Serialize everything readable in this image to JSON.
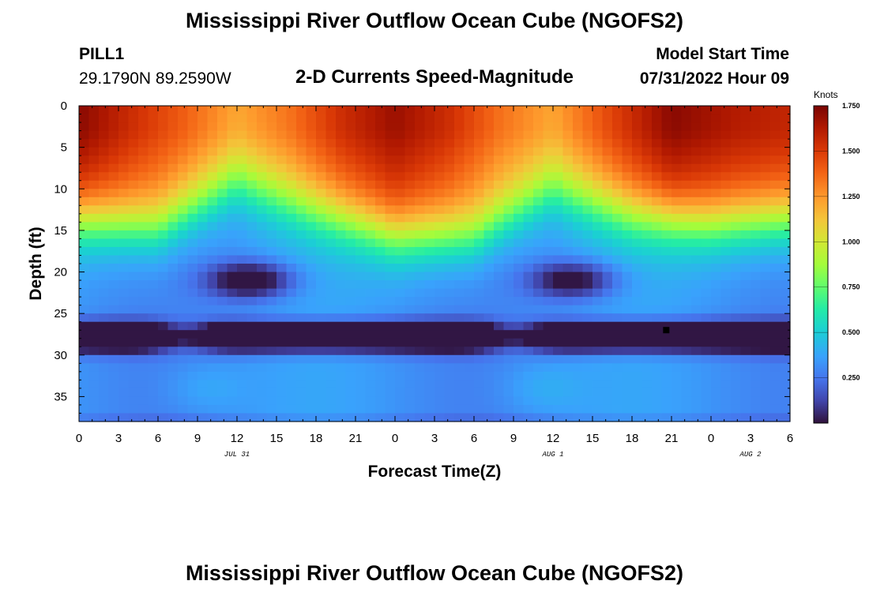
{
  "header": {
    "title": "Mississippi River Outflow Ocean Cube (NGOFS2)",
    "station_name": "PILL1",
    "station_coords": "29.1790N  89.2590W",
    "subtitle": "2-D Currents Speed-Magnitude",
    "model_start_label": "Model Start Time",
    "model_start_value": "07/31/2022 Hour 09"
  },
  "footer": {
    "title": "Mississippi River Outflow Ocean Cube (NGOFS2)"
  },
  "chart_data": {
    "type": "heatmap",
    "xlabel": "Forecast Time(Z)",
    "ylabel": "Depth (ft)",
    "x_range_hours": [
      0,
      54
    ],
    "y_range_ft": [
      0,
      38
    ],
    "x_tick_labels": [
      "0",
      "3",
      "6",
      "9",
      "12",
      "15",
      "18",
      "21",
      "0",
      "3",
      "6",
      "9",
      "12",
      "15",
      "18",
      "21",
      "0",
      "3",
      "6"
    ],
    "y_tick_labels": [
      "0",
      "5",
      "10",
      "15",
      "20",
      "25",
      "30",
      "35"
    ],
    "date_labels": [
      "JUL 31",
      "AUG 1",
      "AUG 2"
    ],
    "colorbar": {
      "unit": "Knots",
      "tick_labels": [
        "1.750",
        "1.500",
        "1.250",
        "1.000",
        "0.750",
        "0.500",
        "0.250"
      ],
      "range": [
        0,
        1.75
      ]
    },
    "surface_speed_profile_knots": [
      {
        "hour": 0,
        "speed": 1.72
      },
      {
        "hour": 4,
        "speed": 1.55
      },
      {
        "hour": 8,
        "speed": 1.4
      },
      {
        "hour": 12,
        "speed": 1.22
      },
      {
        "hour": 16,
        "speed": 1.35
      },
      {
        "hour": 20,
        "speed": 1.55
      },
      {
        "hour": 24,
        "speed": 1.68
      },
      {
        "hour": 28,
        "speed": 1.55
      },
      {
        "hour": 32,
        "speed": 1.35
      },
      {
        "hour": 36,
        "speed": 1.22
      },
      {
        "hour": 40,
        "speed": 1.45
      },
      {
        "hour": 45,
        "speed": 1.72
      },
      {
        "hour": 50,
        "speed": 1.62
      },
      {
        "hour": 54,
        "speed": 1.58
      }
    ],
    "gradient_depth_ft": [
      {
        "hour": 0,
        "depth": 10
      },
      {
        "hour": 6,
        "depth": 11
      },
      {
        "hour": 12,
        "depth": 5.5
      },
      {
        "hour": 18,
        "depth": 9
      },
      {
        "hour": 24,
        "depth": 12
      },
      {
        "hour": 30,
        "depth": 12
      },
      {
        "hour": 36,
        "depth": 6.5
      },
      {
        "hour": 42,
        "depth": 9.5
      },
      {
        "hour": 48,
        "depth": 10.5
      },
      {
        "hour": 54,
        "depth": 10
      }
    ],
    "min_speed_band": {
      "depth_ft": 27.8,
      "speed": 0.03
    },
    "marker": {
      "hour": 44.6,
      "depth_ft": 27
    }
  }
}
